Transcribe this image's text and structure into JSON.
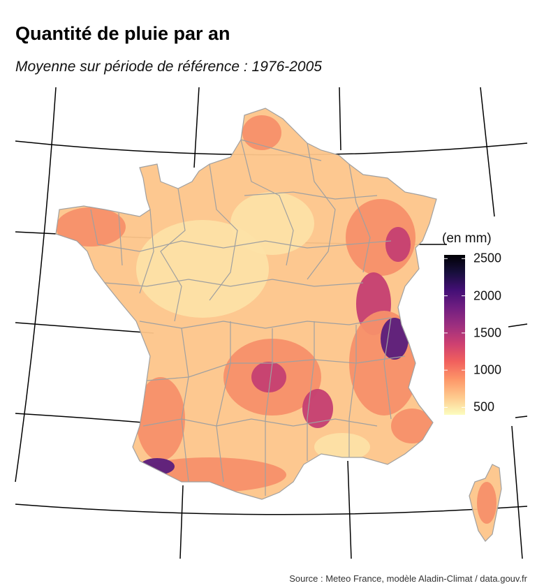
{
  "title": "Quantité de pluie par an",
  "subtitle": "Moyenne sur période de référence : 1976-2005",
  "legend": {
    "title": "(en mm)",
    "min": 400,
    "max": 2550,
    "ticks": [
      {
        "value": 500,
        "label": "500"
      },
      {
        "value": 1000,
        "label": "1000"
      },
      {
        "value": 1500,
        "label": "1500"
      },
      {
        "value": 2000,
        "label": "2000"
      },
      {
        "value": 2500,
        "label": "2500"
      }
    ],
    "colors": [
      "#fcfdbf",
      "#fec98d",
      "#fd9668",
      "#f1605d",
      "#cd4071",
      "#9e2f7f",
      "#721f81",
      "#440f76",
      "#180f3d",
      "#000004"
    ]
  },
  "map": {
    "region_colors": {
      "dry_north_west": "#fde2a6",
      "moderate": "#fdc58a",
      "wet": "#f7906a",
      "very_wet": "#c53f72",
      "wettest": "#5a1c7c"
    },
    "border_color": "#a0a0a0",
    "graticule_color": "#000000"
  },
  "source": "Source : Meteo France, modèle Aladin-Climat / data.gouv.fr"
}
